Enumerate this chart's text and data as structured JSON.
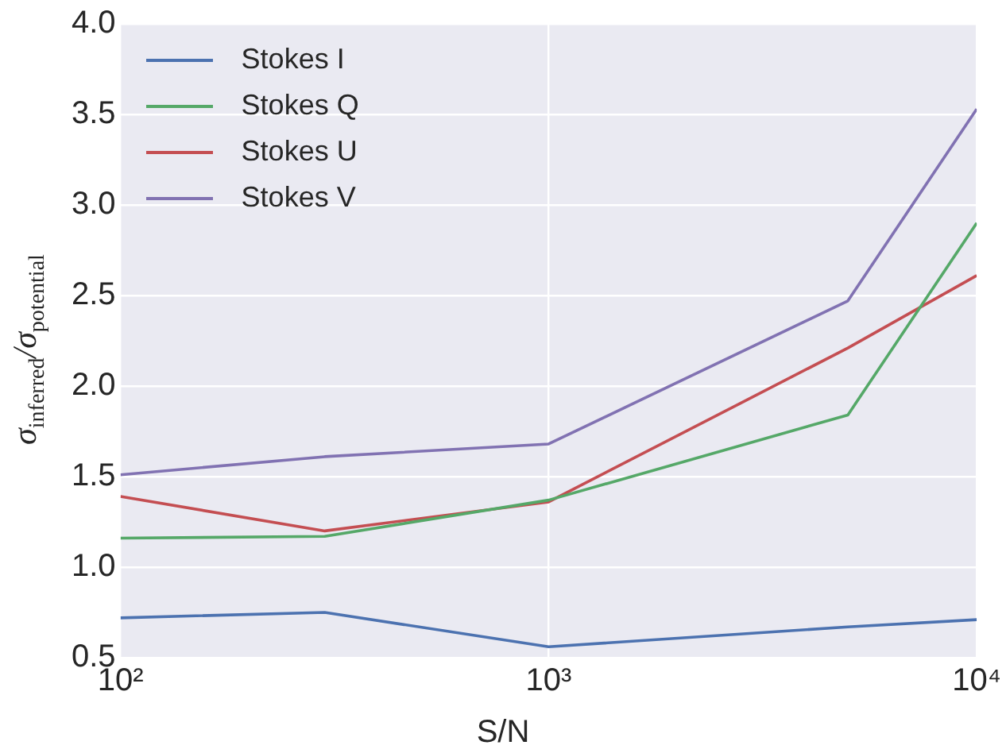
{
  "chart_data": {
    "type": "line",
    "xlabel": "S/N",
    "ylabel": "σ$_{inferred}$/σ$_{potential}$",
    "log": "x",
    "x": [
      100,
      300,
      1000,
      5000,
      10000
    ],
    "series": [
      {
        "name": "Stokes I",
        "color": "#4c72b0",
        "values": [
          0.72,
          0.75,
          0.56,
          0.67,
          0.71
        ]
      },
      {
        "name": "Stokes Q",
        "color": "#55a868",
        "values": [
          1.16,
          1.17,
          1.37,
          1.84,
          2.9
        ]
      },
      {
        "name": "Stokes U",
        "color": "#c44e52",
        "values": [
          1.39,
          1.2,
          1.36,
          2.21,
          2.61
        ]
      },
      {
        "name": "Stokes V",
        "color": "#8172b2",
        "values": [
          1.51,
          1.61,
          1.68,
          2.47,
          3.53
        ]
      }
    ],
    "xlim": [
      100,
      10000
    ],
    "ylim": [
      0.5,
      4.0
    ],
    "xticks": [
      {
        "value": 100,
        "label": "10²"
      },
      {
        "value": 1000,
        "label": "10³"
      },
      {
        "value": 10000,
        "label": "10⁴"
      }
    ],
    "yticks": [
      {
        "value": 0.5,
        "label": "0.5"
      },
      {
        "value": 1,
        "label": "1.0"
      },
      {
        "value": 1.5,
        "label": "1.5"
      },
      {
        "value": 2,
        "label": "2.0"
      },
      {
        "value": 2.5,
        "label": "2.5"
      },
      {
        "value": 3,
        "label": "3.0"
      },
      {
        "value": 3.5,
        "label": "3.5"
      },
      {
        "value": 4,
        "label": "4.0"
      }
    ],
    "grid": true,
    "legend": "top left",
    "marker": "none",
    "line_style": "solid"
  }
}
